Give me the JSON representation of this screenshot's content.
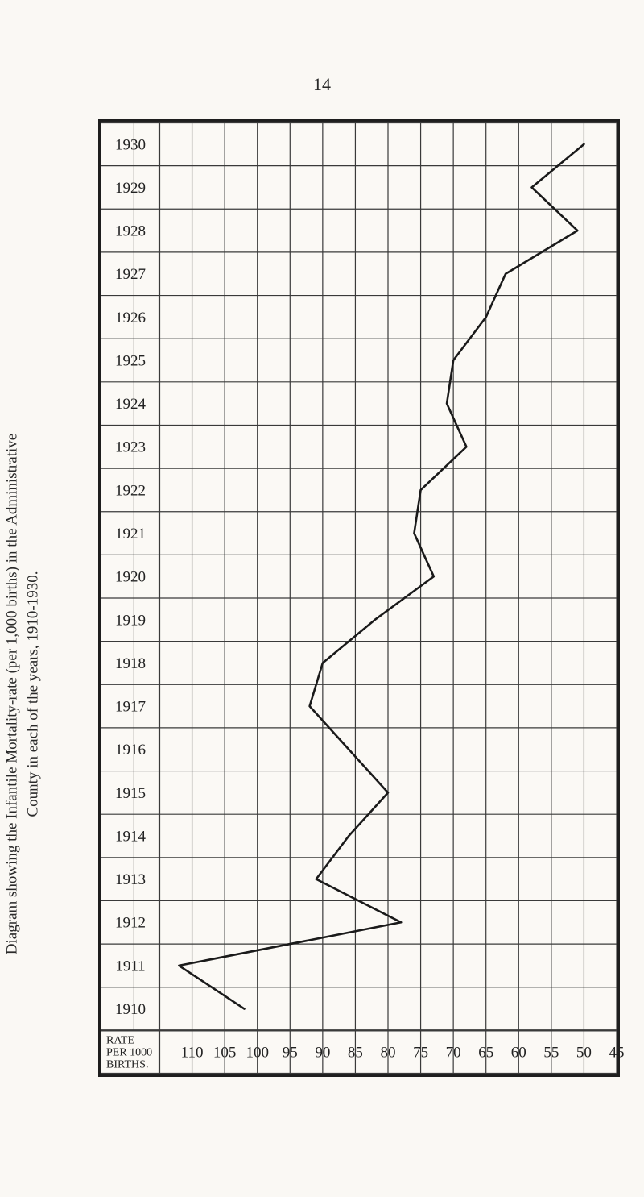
{
  "page_number": "14",
  "caption_line1": "Diagram showing the Infantile Mortality-rate (per 1,000 births) in the Administrative",
  "caption_line2": "County in each of the years, 1910-1930.",
  "chart": {
    "type": "line",
    "y_labels": [
      "1930",
      "1929",
      "1928",
      "1927",
      "1926",
      "1925",
      "1924",
      "1923",
      "1922",
      "1921",
      "1920",
      "1919",
      "1918",
      "1917",
      "1916",
      "1915",
      "1914",
      "1913",
      "1912",
      "1911",
      "1910"
    ],
    "x_ticks": [
      110,
      105,
      100,
      95,
      90,
      85,
      80,
      75,
      70,
      65,
      60,
      55,
      50,
      45
    ],
    "x_axis_title_top": "RATE",
    "x_axis_title_mid": "PER 1000",
    "x_axis_title_bot": "BIRTHS.",
    "x_min": 45,
    "x_max": 115,
    "values_by_year": {
      "1910": 102,
      "1911": 112,
      "1912": 78,
      "1913": 91,
      "1914": 86,
      "1915": 80,
      "1916": 86,
      "1917": 92,
      "1918": 90,
      "1919": 82,
      "1920": 73,
      "1921": 76,
      "1922": 75,
      "1923": 68,
      "1924": 71,
      "1925": 70,
      "1926": 65,
      "1927": 62,
      "1928": 51,
      "1929": 58,
      "1930": 50
    },
    "grid_color": "#3a3a3a",
    "series_color": "#1a1a1a",
    "series_width": 2.6,
    "grid_width_major": 2.2,
    "grid_width_minor": 1.2,
    "background_color": "#fbf9f5",
    "title_fontsize": 19,
    "tick_fontsize": 19
  }
}
